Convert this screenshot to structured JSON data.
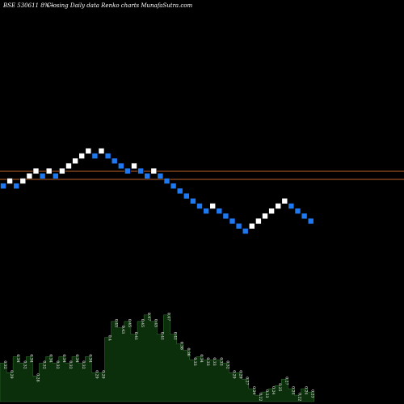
{
  "header": {
    "symbol": "BSE 530611 8%~",
    "subtitle": "Closing Daily data  Renko  charts MunafaSutra.com"
  },
  "colors": {
    "background": "#000000",
    "up_brick": "#ffffff",
    "down_brick": "#1e78f0",
    "brick_edge": "#000000",
    "ref_line": "#c0632a",
    "volume_fill": "#0b2e0b",
    "volume_stroke": "#3a7a3a",
    "label": "#ffffff"
  },
  "chart_data": {
    "type": "renko",
    "brick_direction": [
      "down",
      "up",
      "down",
      "up",
      "up",
      "up",
      "down",
      "up",
      "down",
      "up",
      "up",
      "up",
      "up",
      "up",
      "down",
      "up",
      "down",
      "down",
      "down",
      "down",
      "up",
      "down",
      "down",
      "up",
      "down",
      "down",
      "down",
      "down",
      "down",
      "down",
      "down",
      "down",
      "up",
      "down",
      "down",
      "down",
      "down",
      "down",
      "up",
      "up",
      "up",
      "up",
      "up",
      "up",
      "down",
      "down",
      "down",
      "down"
    ],
    "volume_labels": [
      "0.32",
      "0.29",
      "0.34",
      "0.32",
      "0.34",
      "0.28",
      "0.32",
      "0.34",
      "0.32",
      "0.34",
      "0.32",
      "0.34",
      "0.32",
      "0.34",
      "0.29",
      "0.29",
      "0.4",
      "0.45",
      "0.43",
      "0.45",
      "0.41",
      "0.45",
      "0.47",
      "0.45",
      "0.41",
      "0.47",
      "0.41",
      "0.38",
      "0.36",
      "0.33",
      "0.34",
      "0.33",
      "0.33",
      "0.33",
      "0.32",
      "0.29",
      "0.29",
      "0.27",
      "0.24",
      "0.22",
      "0.23",
      "0.24",
      "0.25",
      "0.27",
      "0.24",
      "0.22",
      "0.24",
      "0.23"
    ]
  }
}
